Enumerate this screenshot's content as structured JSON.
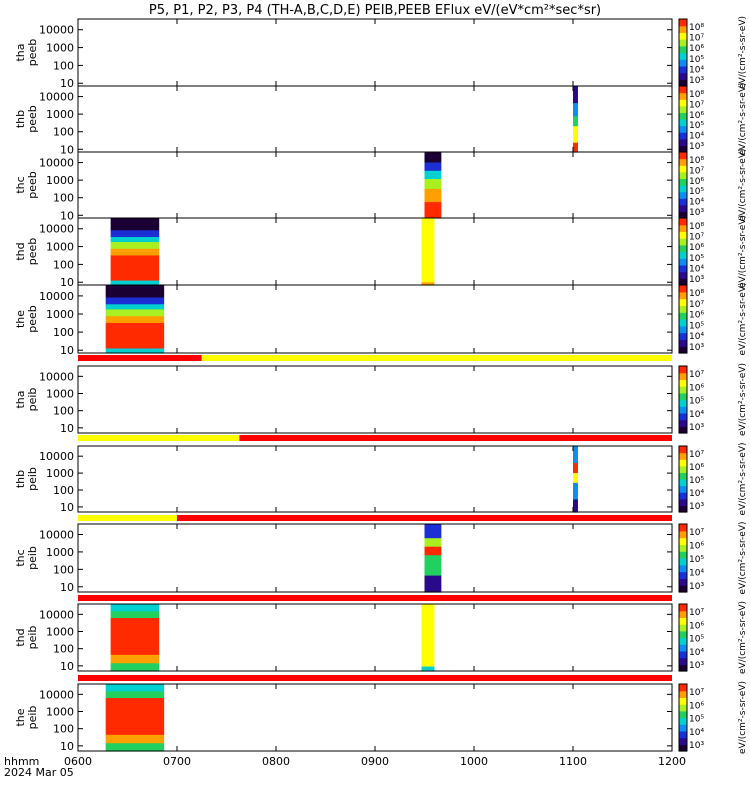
{
  "title": "P5, P1, P2, P3, P4 (TH-A,B,C,D,E) PEIB,PEEB EFlux eV/(eV*cm²*sec*sr)",
  "x_axis": {
    "corner_label": "hhmm",
    "date_label": "2024 Mar 05",
    "tick_labels": [
      "0600",
      "0700",
      "0800",
      "0900",
      "1000",
      "1100",
      "1200"
    ],
    "tick_hours": [
      6,
      7,
      8,
      9,
      10,
      11,
      12
    ],
    "range_hours": [
      6,
      12
    ]
  },
  "y_tick_labels": [
    "10",
    "100",
    "1000",
    "10000"
  ],
  "colors": {
    "flag_red": "#ff0000",
    "flag_yellow": "#ffff00",
    "colormap": [
      "#1a0033",
      "#2a0a8a",
      "#1c2fd4",
      "#0a8ef0",
      "#00d0d0",
      "#22d060",
      "#a8f020",
      "#ffff00",
      "#ffa000",
      "#ff2a00"
    ]
  },
  "chart_data": {
    "type": "heatmap",
    "panels": [
      {
        "ylabel_top": "tha",
        "ylabel_bottom": "peeb",
        "ylim_eV": [
          7,
          40000
        ],
        "yscale": "log",
        "colorbar_ticks": [
          "10⁸",
          "10⁷",
          "10⁶",
          "10⁵",
          "10⁴",
          "10³"
        ],
        "colorbar_unit": "eV/(cm²-s-sr-eV)",
        "data_intervals": [],
        "flag_bar": null
      },
      {
        "ylabel_top": "thb",
        "ylabel_bottom": "peeb",
        "ylim_eV": [
          7,
          40000
        ],
        "yscale": "log",
        "colorbar_ticks": [
          "10⁸",
          "10⁷",
          "10⁶",
          "10⁵",
          "10⁴",
          "10³"
        ],
        "colorbar_unit": "eV/(cm²-s-sr-eV)",
        "data_intervals": [
          {
            "start": 11.0,
            "end": 11.05,
            "profile": "narrow"
          }
        ],
        "flag_bar": null
      },
      {
        "ylabel_top": "thc",
        "ylabel_bottom": "peeb",
        "ylim_eV": [
          7,
          40000
        ],
        "yscale": "log",
        "colorbar_ticks": [
          "10⁸",
          "10⁷",
          "10⁶",
          "10⁵",
          "10⁴",
          "10³"
        ],
        "colorbar_unit": "eV/(cm²-s-sr-eV)",
        "data_intervals": [
          {
            "start": 9.5,
            "end": 9.67,
            "profile": "electron_hot"
          }
        ],
        "flag_bar": null
      },
      {
        "ylabel_top": "thd",
        "ylabel_bottom": "peeb",
        "ylim_eV": [
          7,
          40000
        ],
        "yscale": "log",
        "colorbar_ticks": [
          "10⁸",
          "10⁷",
          "10⁶",
          "10⁵",
          "10⁴",
          "10³"
        ],
        "colorbar_unit": "eV/(cm²-s-sr-eV)",
        "data_intervals": [
          {
            "start": 6.33,
            "end": 6.82,
            "profile": "electron_block"
          },
          {
            "start": 9.47,
            "end": 9.6,
            "profile": "electron_v"
          }
        ],
        "flag_bar": null
      },
      {
        "ylabel_top": "the",
        "ylabel_bottom": "peeb",
        "ylim_eV": [
          7,
          40000
        ],
        "yscale": "log",
        "colorbar_ticks": [
          "10⁸",
          "10⁷",
          "10⁶",
          "10⁵",
          "10⁴",
          "10³"
        ],
        "colorbar_unit": "eV/(cm²-s-sr-eV)",
        "data_intervals": [
          {
            "start": 6.28,
            "end": 6.87,
            "profile": "electron_block"
          }
        ],
        "flag_bar": [
          {
            "start": 6.0,
            "end": 7.25,
            "color": "red"
          },
          {
            "start": 7.25,
            "end": 12.0,
            "color": "yellow"
          }
        ]
      },
      {
        "ylabel_top": "tha",
        "ylabel_bottom": "peib",
        "ylim_eV": [
          5,
          40000
        ],
        "yscale": "log",
        "colorbar_ticks": [
          "10⁷",
          "10⁶",
          "10⁵",
          "10⁴",
          "10³"
        ],
        "colorbar_unit": "eV/(cm²-s-sr-eV)",
        "data_intervals": [],
        "flag_bar": [
          {
            "start": 6.0,
            "end": 7.63,
            "color": "yellow"
          },
          {
            "start": 7.63,
            "end": 12.0,
            "color": "red"
          }
        ]
      },
      {
        "ylabel_top": "thb",
        "ylabel_bottom": "peib",
        "ylim_eV": [
          5,
          40000
        ],
        "yscale": "log",
        "colorbar_ticks": [
          "10⁷",
          "10⁶",
          "10⁵",
          "10⁴",
          "10³"
        ],
        "colorbar_unit": "eV/(cm²-s-sr-eV)",
        "data_intervals": [
          {
            "start": 11.0,
            "end": 11.05,
            "profile": "ion_narrow"
          }
        ],
        "flag_bar": [
          {
            "start": 6.0,
            "end": 7.0,
            "color": "yellow"
          },
          {
            "start": 7.0,
            "end": 12.0,
            "color": "red"
          }
        ]
      },
      {
        "ylabel_top": "thc",
        "ylabel_bottom": "peib",
        "ylim_eV": [
          5,
          40000
        ],
        "yscale": "log",
        "colorbar_ticks": [
          "10⁷",
          "10⁶",
          "10⁵",
          "10⁴",
          "10³"
        ],
        "colorbar_unit": "eV/(cm²-s-sr-eV)",
        "data_intervals": [
          {
            "start": 9.5,
            "end": 9.67,
            "profile": "ion_band"
          }
        ],
        "flag_bar": [
          {
            "start": 6.0,
            "end": 12.0,
            "color": "red"
          }
        ]
      },
      {
        "ylabel_top": "thd",
        "ylabel_bottom": "peib",
        "ylim_eV": [
          5,
          40000
        ],
        "yscale": "log",
        "colorbar_ticks": [
          "10⁷",
          "10⁶",
          "10⁵",
          "10⁴",
          "10³"
        ],
        "colorbar_unit": "eV/(cm²-s-sr-eV)",
        "data_intervals": [
          {
            "start": 6.33,
            "end": 6.82,
            "profile": "ion_block"
          },
          {
            "start": 9.47,
            "end": 9.6,
            "profile": "ion_v"
          }
        ],
        "flag_bar": [
          {
            "start": 6.0,
            "end": 12.0,
            "color": "red"
          }
        ]
      },
      {
        "ylabel_top": "the",
        "ylabel_bottom": "peib",
        "ylim_eV": [
          5,
          40000
        ],
        "yscale": "log",
        "colorbar_ticks": [
          "10⁷",
          "10⁶",
          "10⁵",
          "10⁴",
          "10³"
        ],
        "colorbar_unit": "eV/(cm²-s-sr-eV)",
        "data_intervals": [
          {
            "start": 6.28,
            "end": 6.87,
            "profile": "ion_block"
          }
        ],
        "flag_bar": null
      }
    ]
  }
}
